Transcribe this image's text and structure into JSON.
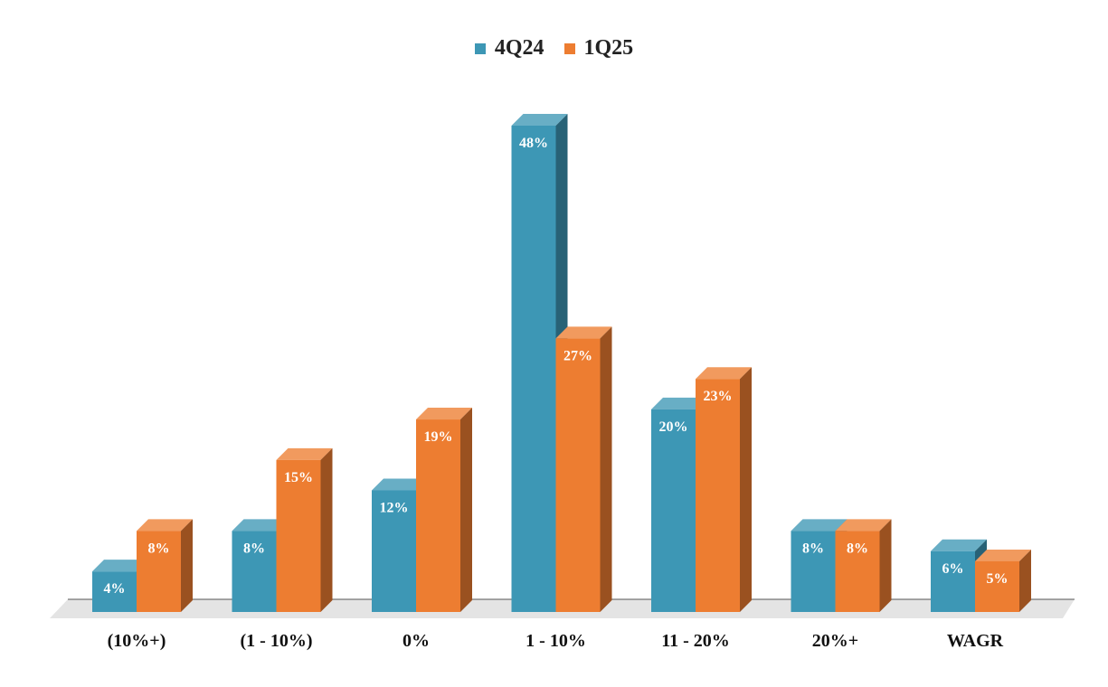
{
  "chart_data": {
    "type": "bar",
    "categories": [
      "(10%+)",
      "(1 - 10%)",
      "0%",
      "1 - 10%",
      "11 - 20%",
      "20%+",
      "WAGR"
    ],
    "series": [
      {
        "name": "4Q24",
        "values": [
          4,
          8,
          12,
          48,
          20,
          8,
          6
        ],
        "labels": [
          "4%",
          "8%",
          "12%",
          "48%",
          "20%",
          "8%",
          "6%"
        ],
        "color": "#3D97B5"
      },
      {
        "name": "1Q25",
        "values": [
          8,
          15,
          19,
          27,
          23,
          8,
          5
        ],
        "labels": [
          "8%",
          "15%",
          "19%",
          "27%",
          "23%",
          "8%",
          "5%"
        ],
        "color": "#ED7D31"
      }
    ],
    "title": "",
    "xlabel": "",
    "ylabel": "",
    "ylim": [
      0,
      48
    ],
    "legend_position": "top-center",
    "grid": false
  }
}
